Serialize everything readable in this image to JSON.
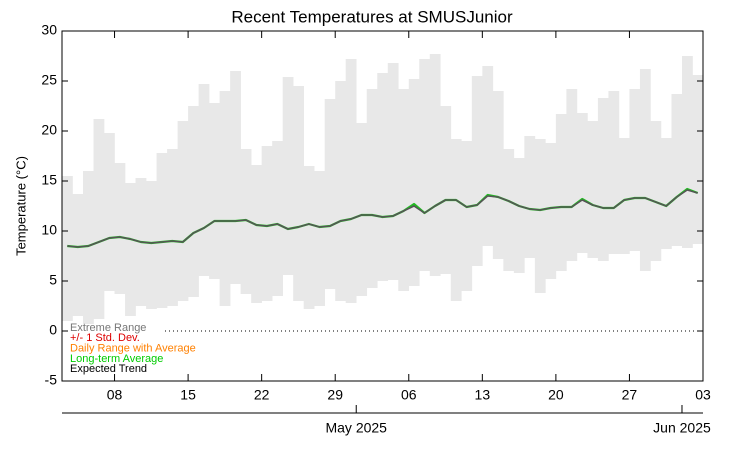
{
  "chart_data": {
    "type": "range-line",
    "title": "Recent Temperatures at SMUSJunior",
    "y_label": "Temperature (°C)",
    "xlim": [
      "2025-04-03",
      "2025-06-03"
    ],
    "ylim": [
      -5,
      30
    ],
    "yticks": [
      -5,
      0,
      5,
      10,
      15,
      20,
      25,
      30
    ],
    "xticks": [
      {
        "value": "2025-04-08",
        "label": "08"
      },
      {
        "value": "2025-04-15",
        "label": "15"
      },
      {
        "value": "2025-04-22",
        "label": "22"
      },
      {
        "value": "2025-04-29",
        "label": "29"
      },
      {
        "value": "2025-05-06",
        "label": "06"
      },
      {
        "value": "2025-05-13",
        "label": "13"
      },
      {
        "value": "2025-05-20",
        "label": "20"
      },
      {
        "value": "2025-05-27",
        "label": "27"
      },
      {
        "value": "2025-06-03",
        "label": "03"
      }
    ],
    "month_ticks": [
      {
        "value": "2025-05-01",
        "label": "May 2025"
      },
      {
        "value": "2025-06-01",
        "label": "Jun 2025"
      }
    ],
    "x": [
      "2025-04-03",
      "2025-04-04",
      "2025-04-05",
      "2025-04-06",
      "2025-04-07",
      "2025-04-08",
      "2025-04-09",
      "2025-04-10",
      "2025-04-11",
      "2025-04-12",
      "2025-04-13",
      "2025-04-14",
      "2025-04-15",
      "2025-04-16",
      "2025-04-17",
      "2025-04-18",
      "2025-04-19",
      "2025-04-20",
      "2025-04-21",
      "2025-04-22",
      "2025-04-23",
      "2025-04-24",
      "2025-04-25",
      "2025-04-26",
      "2025-04-27",
      "2025-04-28",
      "2025-04-29",
      "2025-04-30",
      "2025-05-01",
      "2025-05-02",
      "2025-05-03",
      "2025-05-04",
      "2025-05-05",
      "2025-05-06",
      "2025-05-07",
      "2025-05-08",
      "2025-05-09",
      "2025-05-10",
      "2025-05-11",
      "2025-05-12",
      "2025-05-13",
      "2025-05-14",
      "2025-05-15",
      "2025-05-16",
      "2025-05-17",
      "2025-05-18",
      "2025-05-19",
      "2025-05-20",
      "2025-05-21",
      "2025-05-22",
      "2025-05-23",
      "2025-05-24",
      "2025-05-25",
      "2025-05-26",
      "2025-05-27",
      "2025-05-28",
      "2025-05-29",
      "2025-05-30",
      "2025-05-31",
      "2025-06-01",
      "2025-06-02"
    ],
    "range": {
      "name": "Extreme Range",
      "color": "#e8e8e8",
      "high": [
        15.5,
        13.7,
        16,
        21.2,
        19.8,
        16.8,
        14.8,
        15.3,
        15,
        17.8,
        18.2,
        21,
        22.5,
        24.7,
        22.8,
        24,
        26,
        18.2,
        16.6,
        18.5,
        19,
        25.4,
        24.5,
        16.5,
        16,
        23.2,
        25,
        27.2,
        20.8,
        24.2,
        25.8,
        26.8,
        24.2,
        25.2,
        27.2,
        27.7,
        22.5,
        19.2,
        19,
        25.5,
        26.5,
        24,
        18.2,
        17.3,
        19.5,
        19.2,
        18.8,
        21.7,
        24.2,
        21.8,
        21,
        23.3,
        24,
        19.3,
        24.2,
        26.2,
        21,
        19.3,
        23.7,
        27.5,
        25.6
      ],
      "low": [
        1,
        1.5,
        0.7,
        1.2,
        4,
        3.7,
        1.5,
        2.5,
        2.2,
        2.3,
        2.5,
        3,
        3.4,
        5.5,
        5.2,
        2.5,
        4.7,
        3.7,
        2.8,
        3,
        3.5,
        5.6,
        3,
        2.2,
        2.5,
        4.2,
        3,
        2.8,
        3.5,
        4.3,
        5,
        5.1,
        4,
        4.5,
        6,
        5.5,
        5.7,
        3,
        4,
        6.5,
        8.5,
        7.2,
        6,
        5.8,
        7.3,
        3.8,
        5.2,
        6,
        7,
        7.8,
        7.3,
        7,
        7.7,
        7.7,
        8,
        6,
        7,
        8.2,
        8.5,
        8.3,
        8.7
      ]
    },
    "series": [
      {
        "name": "Long-term Average",
        "color": "#22bb22",
        "values": [
          8.5,
          8.4,
          8.5,
          8.9,
          9.3,
          9.4,
          9.2,
          8.9,
          8.8,
          8.9,
          9.0,
          8.9,
          9.8,
          10.3,
          11.0,
          11.0,
          11.0,
          11.1,
          10.6,
          10.5,
          10.7,
          10.2,
          10.4,
          10.7,
          10.4,
          10.5,
          11.0,
          11.2,
          11.6,
          11.6,
          11.4,
          11.5,
          12.0,
          12.7,
          11.8,
          12.5,
          13.1,
          13.1,
          12.4,
          12.6,
          13.6,
          13.4,
          13.0,
          12.5,
          12.2,
          12.1,
          12.3,
          12.4,
          12.4,
          13.2,
          12.6,
          12.3,
          12.3,
          13.1,
          13.3,
          13.3,
          12.9,
          12.5,
          13.4,
          14.2,
          13.8
        ]
      },
      {
        "name": "Expected Trend",
        "color": "#555555",
        "values": [
          8.5,
          8.4,
          8.5,
          8.9,
          9.3,
          9.4,
          9.2,
          8.9,
          8.8,
          8.9,
          9.0,
          8.9,
          9.8,
          10.3,
          11.0,
          11.0,
          11.0,
          11.1,
          10.6,
          10.5,
          10.7,
          10.2,
          10.4,
          10.7,
          10.4,
          10.5,
          11.0,
          11.2,
          11.6,
          11.6,
          11.4,
          11.5,
          12.0,
          12.5,
          11.8,
          12.5,
          13.1,
          13.1,
          12.4,
          12.6,
          13.5,
          13.4,
          13.0,
          12.5,
          12.2,
          12.1,
          12.3,
          12.4,
          12.4,
          13.1,
          12.6,
          12.3,
          12.3,
          13.1,
          13.3,
          13.3,
          12.9,
          12.5,
          13.4,
          14.1,
          13.8
        ]
      }
    ],
    "legend": [
      {
        "label": "Extreme Range",
        "color": "#777777"
      },
      {
        "label": "+/- 1 Std. Dev.",
        "color": "#dd0000"
      },
      {
        "label": "Daily Range with Average",
        "color": "#ff8000"
      },
      {
        "label": "Long-term Average",
        "color": "#00cc00"
      },
      {
        "label": "Expected Trend",
        "color": "#000000"
      }
    ]
  }
}
